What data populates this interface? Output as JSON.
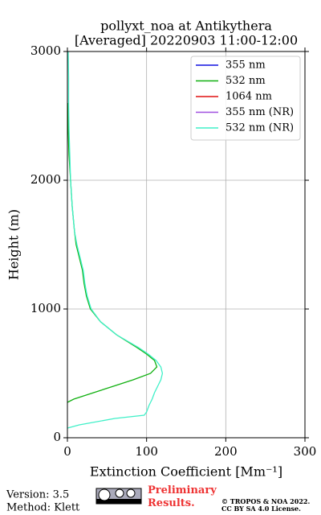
{
  "chart_data": {
    "type": "line",
    "title": "pollyxt_noa at Antikythera",
    "subtitle": "[Averaged] 20220903 11:00-12:00",
    "xlabel": "Extinction Coefficient [Mm⁻¹]",
    "ylabel": "Height (m)",
    "heights": [
      75,
      100,
      150,
      175,
      200,
      250,
      275,
      300,
      350,
      400,
      450,
      500,
      550,
      600,
      650,
      700,
      800,
      900,
      1000,
      1100,
      1200,
      1300,
      1400,
      1500,
      1600,
      1800,
      2000,
      2200,
      2400,
      2600,
      2800,
      3000
    ],
    "series": [
      {
        "name": "355 nm",
        "color": "#1010e0",
        "values": [
          null,
          null,
          null,
          null,
          null,
          null,
          null,
          null,
          null,
          null,
          null,
          null,
          null,
          null,
          null,
          null,
          null,
          null,
          null,
          null,
          null,
          null,
          null,
          null,
          null,
          null,
          null,
          null,
          null,
          null,
          null,
          null
        ]
      },
      {
        "name": "532 nm",
        "color": "#10b010",
        "values": [
          null,
          null,
          null,
          null,
          null,
          null,
          0,
          8,
          33,
          58,
          83,
          105,
          113,
          110,
          100,
          88,
          62,
          42,
          29,
          24,
          21,
          19,
          15,
          11,
          9,
          6,
          4,
          2,
          1,
          0.5,
          null,
          null
        ]
      },
      {
        "name": "1064 nm",
        "color": "#e01010",
        "values": [
          null,
          null,
          null,
          null,
          null,
          null,
          null,
          null,
          null,
          null,
          null,
          null,
          null,
          null,
          null,
          null,
          null,
          null,
          null,
          null,
          null,
          null,
          null,
          null,
          null,
          null,
          null,
          null,
          null,
          null,
          null,
          null
        ]
      },
      {
        "name": "355 nm (NR)",
        "color": "#a050e0",
        "values": [
          null,
          null,
          null,
          null,
          null,
          null,
          null,
          null,
          null,
          null,
          null,
          null,
          null,
          null,
          null,
          null,
          null,
          null,
          null,
          null,
          null,
          null,
          null,
          null,
          null,
          null,
          null,
          null,
          null,
          null,
          null,
          null
        ]
      },
      {
        "name": "532 nm (NR)",
        "color": "#40f0c8",
        "values": [
          0,
          15,
          60,
          97,
          100,
          103,
          105,
          107,
          110,
          114,
          118,
          120,
          118,
          112,
          102,
          90,
          62,
          42,
          30,
          25,
          22,
          20,
          16,
          12,
          9,
          6,
          4,
          3,
          2,
          1.5,
          1.5,
          1
        ]
      }
    ],
    "xlim": [
      0,
      300
    ],
    "xticks": [
      0,
      100,
      200,
      300
    ],
    "ylim": [
      0,
      3000
    ],
    "yticks": [
      0,
      1000,
      2000,
      3000
    ],
    "grid": true,
    "legend": "upper right"
  },
  "footer": {
    "version": "Version: 3.5",
    "method": "Method: Klett",
    "notice": "Preliminary Results.",
    "copyright": "© TROPOS & NOA 2022.",
    "license": "CC BY SA 4.0 License."
  }
}
